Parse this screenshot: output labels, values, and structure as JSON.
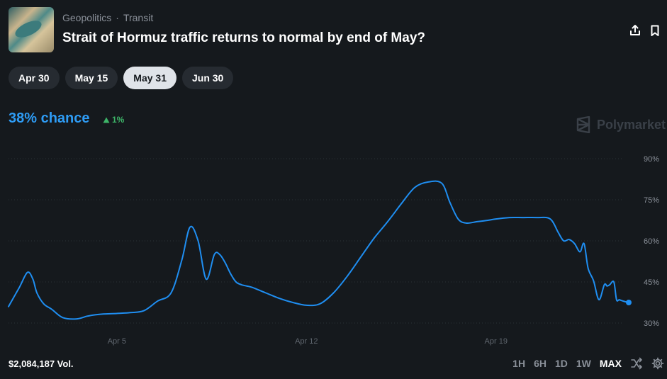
{
  "header": {
    "breadcrumbs": [
      "Geopolitics",
      "Transit"
    ],
    "separator": "·",
    "title": "Strait of Hormuz traffic returns to normal by end of May?"
  },
  "icons": {
    "thumbnail": "map-thumbnail-image",
    "share": "share-icon",
    "bookmark": "bookmark-icon",
    "brand": "polymarket-logo-icon",
    "shuffle": "shuffle-icon",
    "settings": "gear-icon",
    "delta": "triangle-up-icon"
  },
  "tabs": [
    {
      "label": "Apr 30",
      "active": false
    },
    {
      "label": "May 15",
      "active": false
    },
    {
      "label": "May 31",
      "active": true
    },
    {
      "label": "Jun 30",
      "active": false
    }
  ],
  "summary": {
    "chance": "38% chance",
    "delta": "1%"
  },
  "brand": {
    "name": "Polymarket"
  },
  "footer": {
    "volume": "$2,084,187 Vol.",
    "ranges": [
      "1H",
      "6H",
      "1D",
      "1W",
      "MAX"
    ],
    "active_range": "MAX"
  },
  "colors": {
    "line": "#1f8ef1",
    "accent": "#2e9cf5",
    "up": "#3db468",
    "background": "#15191d"
  },
  "chart_data": {
    "type": "line",
    "title": "",
    "xlabel": "",
    "ylabel": "",
    "ylim": [
      25,
      95
    ],
    "yticks": [
      30,
      45,
      60,
      75,
      90
    ],
    "ytick_labels": [
      "30%",
      "45%",
      "60%",
      "75%",
      "90%"
    ],
    "xticks": [
      5,
      12,
      19
    ],
    "xtick_labels": [
      "Apr 5",
      "Apr 12",
      "Apr 19"
    ],
    "grid": true,
    "series": [
      {
        "values_x": [
          1.0,
          1.4,
          1.7,
          1.9,
          2.05,
          2.3,
          2.6,
          3.0,
          3.5,
          3.9,
          4.2,
          4.5,
          5.0,
          5.5,
          6.0,
          6.5,
          7.0,
          7.4,
          7.7,
          8.0,
          8.3,
          8.6,
          8.8,
          9.0,
          9.2,
          9.4,
          9.6,
          9.8,
          10.0,
          10.5,
          11.0,
          11.5,
          12.0,
          12.5,
          13.0,
          13.5,
          14.0,
          14.5,
          15.0,
          15.5,
          16.0,
          16.5,
          17.0,
          17.3,
          17.6,
          17.9,
          18.3,
          18.7,
          19.0,
          19.5,
          20.0,
          20.5,
          21.0,
          21.3,
          21.5,
          21.7,
          21.9,
          22.1,
          22.25,
          22.4,
          22.6,
          22.8,
          23.0,
          23.1,
          23.2,
          23.35,
          23.45,
          23.55,
          23.7,
          23.9
        ],
        "values": [
          36,
          43,
          48.5,
          46,
          41,
          37,
          35,
          32,
          31.5,
          32.5,
          33,
          33.3,
          33.5,
          33.8,
          34.5,
          38,
          41,
          53,
          65,
          60,
          46,
          55,
          55,
          52,
          48,
          45,
          44,
          43.5,
          43,
          41,
          39,
          37.5,
          36.5,
          37,
          41,
          47,
          54,
          61,
          67,
          73.5,
          79.5,
          81.5,
          81,
          74,
          68,
          66.5,
          67,
          67.5,
          68,
          68.5,
          68.5,
          68.5,
          68,
          63,
          60,
          60.5,
          59,
          56,
          59,
          50,
          45.5,
          38.5,
          44,
          43.5,
          44,
          45,
          38.5,
          38.5,
          38,
          37.5
        ]
      }
    ]
  }
}
